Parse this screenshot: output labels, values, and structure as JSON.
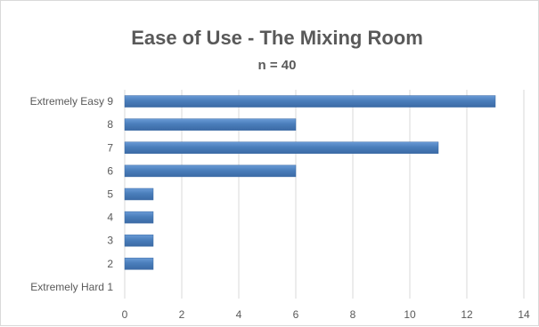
{
  "chart_data": {
    "type": "bar",
    "orientation": "horizontal",
    "title": "Ease of Use - The Mixing Room",
    "subtitle": "n = 40",
    "categories": [
      "Extremely Easy 9",
      "8",
      "7",
      "6",
      "5",
      "4",
      "3",
      "2",
      "Extremely Hard 1"
    ],
    "values": [
      13,
      6,
      11,
      6,
      1,
      1,
      1,
      1,
      0
    ],
    "xlim": [
      0,
      14
    ],
    "xticks": [
      0,
      2,
      4,
      6,
      8,
      10,
      12,
      14
    ],
    "grid": "vertical",
    "legend": "none",
    "bar_color": "#4a7ebb"
  }
}
